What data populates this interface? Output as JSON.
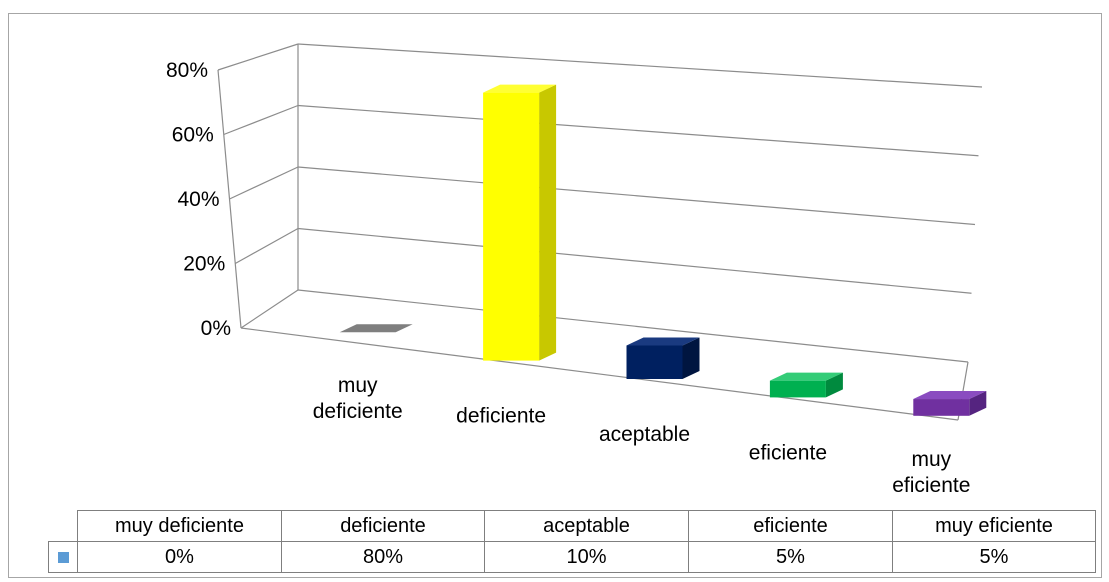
{
  "chart_data": {
    "type": "bar",
    "categories": [
      "muy deficiente",
      "deficiente",
      "aceptable",
      "eficiente",
      "muy eficiente"
    ],
    "category_label_lines": [
      [
        "muy",
        "deficiente"
      ],
      [
        "deficiente"
      ],
      [
        "aceptable"
      ],
      [
        "eficiente"
      ],
      [
        "muy",
        "eficiente"
      ]
    ],
    "values": [
      0,
      80,
      10,
      5,
      5
    ],
    "value_labels": [
      "0%",
      "80%",
      "10%",
      "5%",
      "5%"
    ],
    "y_ticks": [
      "0%",
      "20%",
      "40%",
      "60%",
      "80%"
    ],
    "ylim": [
      0,
      80
    ],
    "grid": true,
    "style": "3d-columns",
    "data_table": true,
    "legend_key_color": "#5b9bd5",
    "bar_colors": [
      "#8c8c8c",
      "#ffff00",
      "#002060",
      "#00b050",
      "#7030a0"
    ],
    "bar_top_colors": [
      "#7f7f7f",
      "#ffff33",
      "#1a3a80",
      "#33cc77",
      "#8a4cc0"
    ],
    "bar_side_colors": [
      "#6e6e6e",
      "#c8c800",
      "#001540",
      "#008a3e",
      "#552480"
    ]
  }
}
